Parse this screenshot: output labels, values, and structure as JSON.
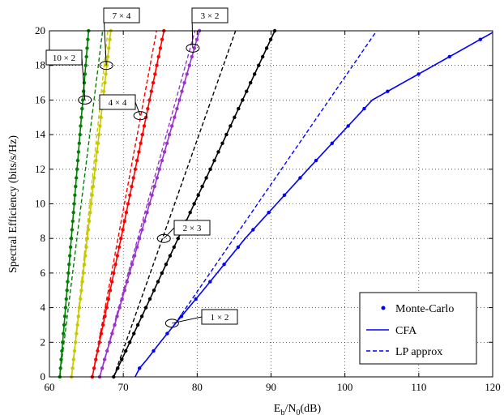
{
  "chart_data": {
    "type": "line",
    "title": "",
    "xlabel": "E_b/N_0(dB)",
    "xlabel_main": "E",
    "xlabel_sub1": "b",
    "xlabel_mid": "/N",
    "xlabel_sub2": "0",
    "xlabel_tail": "(dB)",
    "ylabel": "Spectral Efficiency (bits/s/Hz)",
    "xlim": [
      60,
      120
    ],
    "ylim": [
      0,
      20
    ],
    "xticks": [
      60,
      70,
      80,
      90,
      100,
      110,
      120
    ],
    "yticks": [
      0,
      2,
      4,
      6,
      8,
      10,
      12,
      14,
      16,
      18,
      20
    ],
    "grid": true,
    "legend": {
      "position": "bottom-right",
      "entries": [
        {
          "label": "Monte-Carlo",
          "style": "marker"
        },
        {
          "label": "CFA",
          "style": "solid"
        },
        {
          "label": "LP approx",
          "style": "dashed"
        }
      ]
    },
    "series": [
      {
        "label": "10 × 2",
        "color": "#008000",
        "cfa": [
          [
            61.4,
            0
          ],
          [
            65.3,
            20
          ]
        ],
        "lp": [
          [
            61.4,
            0
          ],
          [
            67.2,
            20
          ]
        ],
        "label_at": [
          64.8,
          16
        ]
      },
      {
        "label": "7 × 4",
        "color": "#c8c800",
        "cfa": [
          [
            63.0,
            0
          ],
          [
            68.3,
            20
          ]
        ],
        "lp": [
          [
            63.0,
            0
          ],
          [
            67.9,
            20
          ]
        ],
        "label_at": [
          67.7,
          18
        ]
      },
      {
        "label": "4 × 4",
        "color": "#ff0000",
        "cfa": [
          [
            65.8,
            0
          ],
          [
            75.5,
            20
          ]
        ],
        "lp": [
          [
            65.8,
            0
          ],
          [
            74.5,
            20
          ]
        ],
        "label_at": [
          72.3,
          15.1
        ]
      },
      {
        "label": "3 × 2",
        "color": "#9933cc",
        "cfa": [
          [
            66.8,
            0
          ],
          [
            80.3,
            20
          ]
        ],
        "lp": [
          [
            66.8,
            0
          ],
          [
            79.7,
            20
          ]
        ],
        "label_at": [
          79.4,
          19
        ]
      },
      {
        "label": "2 × 3",
        "color": "#000000",
        "cfa": [
          [
            68.7,
            0
          ],
          [
            90.5,
            20
          ]
        ],
        "lp": [
          [
            68.7,
            0
          ],
          [
            85.2,
            20
          ]
        ],
        "label_at": [
          75.5,
          8
        ]
      },
      {
        "label": "1 × 2",
        "color": "#0000ff",
        "cfa_curve": [
          [
            71.6,
            0
          ],
          [
            72.2,
            0.5
          ],
          [
            73.2,
            1
          ],
          [
            75,
            2
          ],
          [
            76.9,
            3
          ],
          [
            80.8,
            5
          ],
          [
            86.5,
            8
          ],
          [
            95.0,
            12
          ],
          [
            103.7,
            16
          ],
          [
            120,
            19.9
          ]
        ],
        "lp": [
          [
            76.9,
            3
          ],
          [
            104.3,
            20
          ]
        ],
        "label_at": [
          76.6,
          3.1
        ]
      }
    ]
  }
}
